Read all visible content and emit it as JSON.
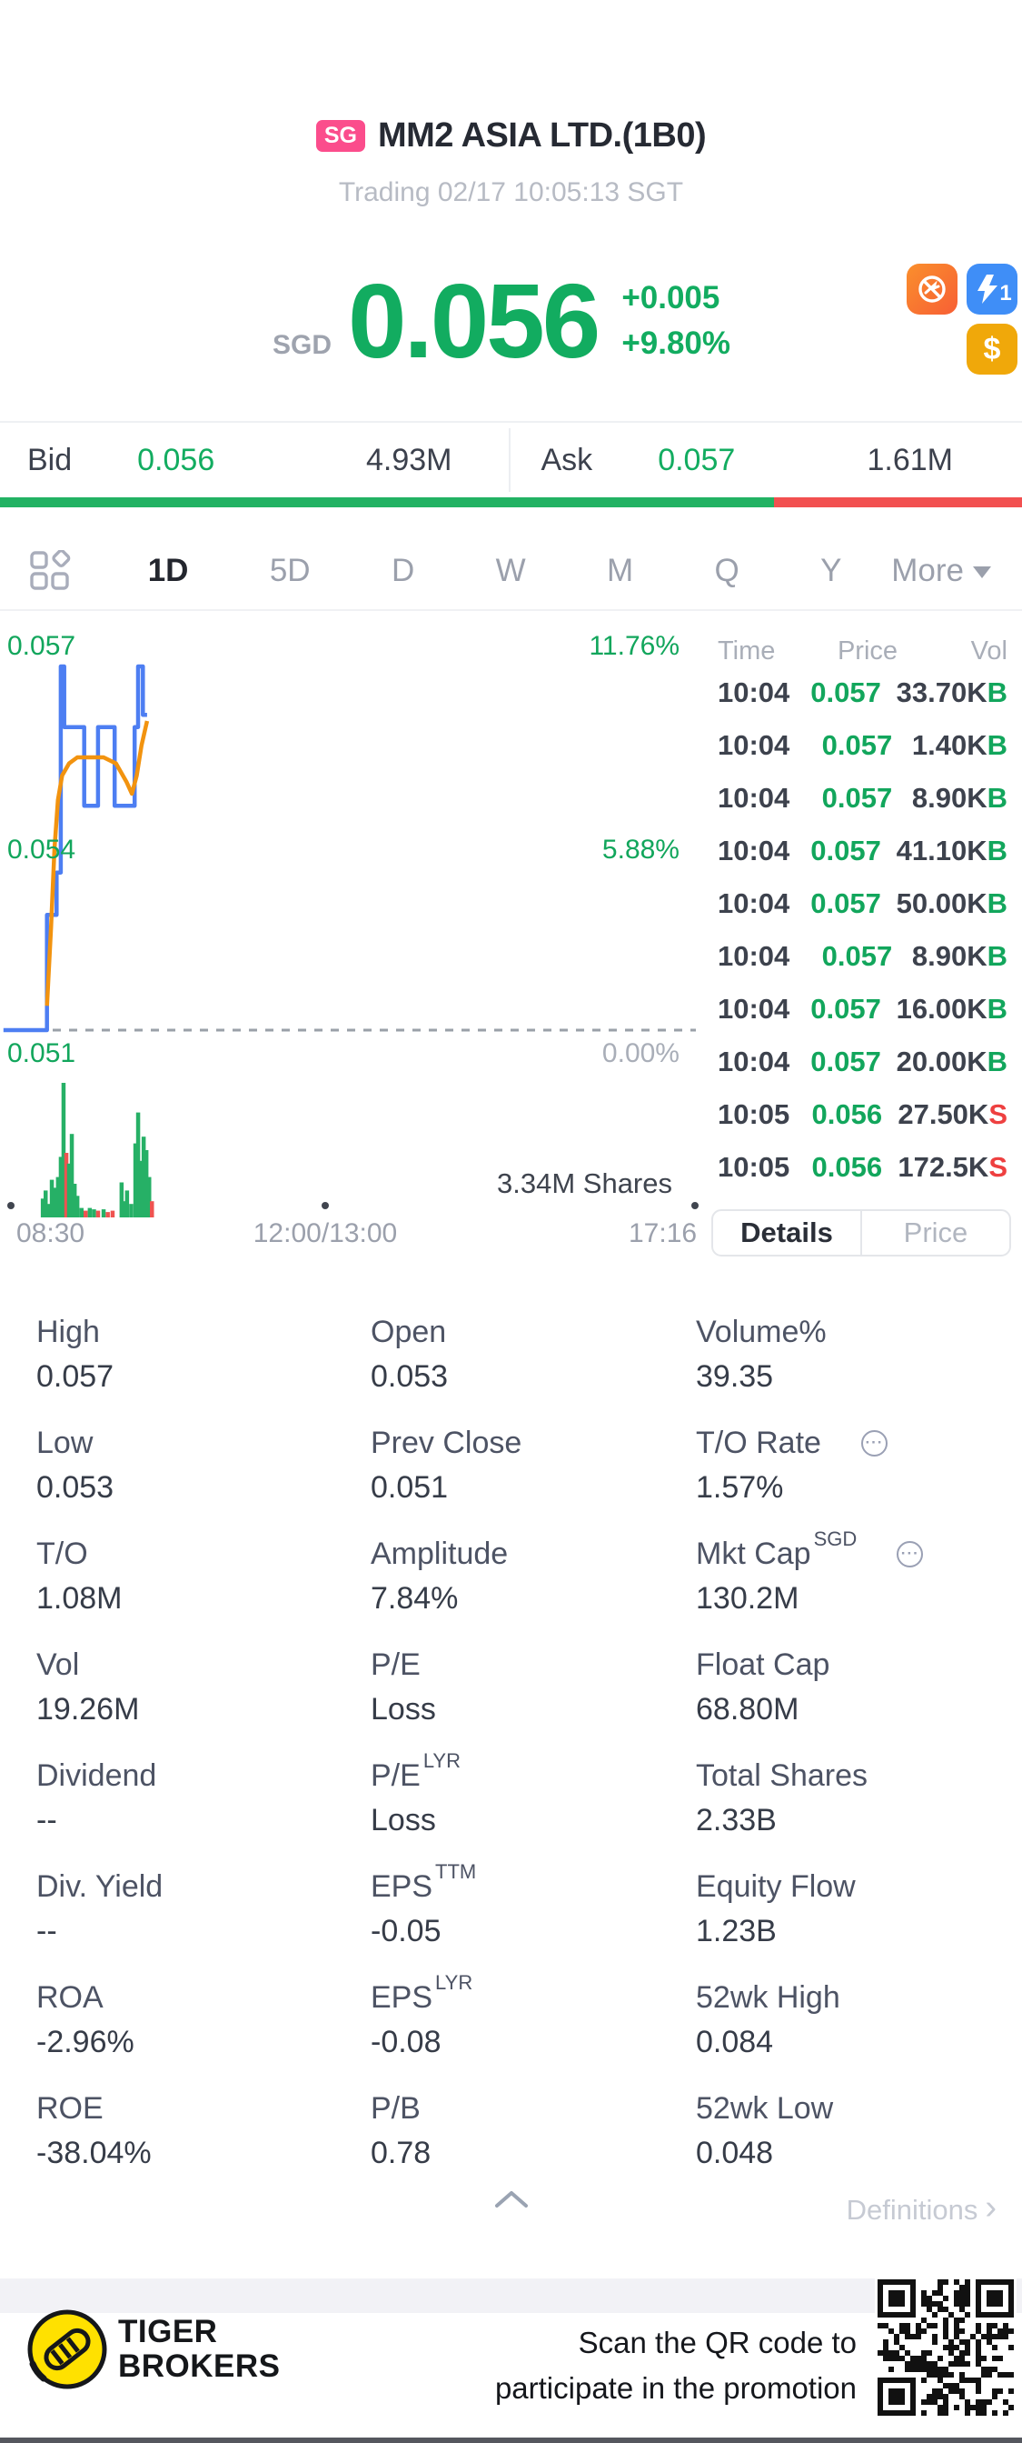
{
  "header": {
    "exchange_badge": "SG",
    "title": "MM2 ASIA LTD.(1B0)",
    "status": "Trading 02/17 10:05:13 SGT"
  },
  "quote": {
    "currency": "SGD",
    "price": "0.056",
    "change": "+0.005",
    "change_pct": "+9.80%",
    "icons": [
      {
        "name": "short-sell-restricted-icon",
        "bg": "#fb7a2e",
        "text": ""
      },
      {
        "name": "level1-quote-icon",
        "bg": "#3f8ef7",
        "text": "1"
      },
      {
        "name": "dollar-icon",
        "bg": "#f0a80a",
        "text": "$"
      }
    ]
  },
  "bid_ask": {
    "bid_label": "Bid",
    "bid_price": "0.056",
    "bid_size": "4.93M",
    "ask_label": "Ask",
    "ask_price": "0.057",
    "ask_size": "1.61M",
    "buy_ratio": 0.757
  },
  "period_tabs": {
    "items": [
      {
        "label": "1D",
        "active": true
      },
      {
        "label": "5D",
        "active": false
      },
      {
        "label": "D",
        "active": false
      },
      {
        "label": "W",
        "active": false
      },
      {
        "label": "M",
        "active": false
      },
      {
        "label": "Q",
        "active": false
      },
      {
        "label": "Y",
        "active": false
      }
    ],
    "more_label": "More"
  },
  "chart_data": {
    "type": "line",
    "title": "MM2 ASIA LTD.(1B0) 1D intraday",
    "currency": "SGD",
    "prev_close": 0.051,
    "y_labels": [
      "0.057",
      "0.054",
      "0.051"
    ],
    "pct_labels": [
      "11.76%",
      "5.88%",
      "0.00%"
    ],
    "x_labels": [
      "08:30",
      "12:00/13:00",
      "17:16"
    ],
    "shares_label": "3.34M Shares",
    "y_min": 0.051,
    "y_max": 0.057,
    "line_color": "#4d7ef2",
    "avg_color": "#f2930f",
    "price_line": [
      [
        0.005,
        0.051
      ],
      [
        0.068,
        0.051
      ],
      [
        0.068,
        0.0529
      ],
      [
        0.082,
        0.0529
      ],
      [
        0.082,
        0.0536
      ],
      [
        0.088,
        0.0536
      ],
      [
        0.088,
        0.057
      ],
      [
        0.093,
        0.057
      ],
      [
        0.093,
        0.056
      ],
      [
        0.122,
        0.056
      ],
      [
        0.122,
        0.0547
      ],
      [
        0.142,
        0.0547
      ],
      [
        0.142,
        0.056
      ],
      [
        0.166,
        0.056
      ],
      [
        0.166,
        0.0547
      ],
      [
        0.195,
        0.0547
      ],
      [
        0.195,
        0.056
      ],
      [
        0.2,
        0.056
      ],
      [
        0.2,
        0.057
      ],
      [
        0.207,
        0.057
      ],
      [
        0.207,
        0.0562
      ],
      [
        0.213,
        0.0562
      ]
    ],
    "avg_line": [
      [
        0.068,
        0.0514
      ],
      [
        0.074,
        0.0527
      ],
      [
        0.079,
        0.054
      ],
      [
        0.084,
        0.0548
      ],
      [
        0.09,
        0.0552
      ],
      [
        0.1,
        0.0554
      ],
      [
        0.112,
        0.0555
      ],
      [
        0.13,
        0.0555
      ],
      [
        0.15,
        0.0555
      ],
      [
        0.168,
        0.0554
      ],
      [
        0.183,
        0.0551
      ],
      [
        0.191,
        0.0549
      ],
      [
        0.198,
        0.0552
      ],
      [
        0.205,
        0.0557
      ],
      [
        0.213,
        0.0561
      ]
    ],
    "volume_bars": [
      [
        0.062,
        0.14,
        "g"
      ],
      [
        0.066,
        0.2,
        "g"
      ],
      [
        0.07,
        0.1,
        "g"
      ],
      [
        0.075,
        0.28,
        "g"
      ],
      [
        0.079,
        0.22,
        "g"
      ],
      [
        0.084,
        0.3,
        "g"
      ],
      [
        0.088,
        0.45,
        "g"
      ],
      [
        0.092,
        1.0,
        "g"
      ],
      [
        0.096,
        0.48,
        "r"
      ],
      [
        0.1,
        0.4,
        "g"
      ],
      [
        0.104,
        0.62,
        "g"
      ],
      [
        0.108,
        0.25,
        "g"
      ],
      [
        0.112,
        0.16,
        "g"
      ],
      [
        0.118,
        0.07,
        "g"
      ],
      [
        0.124,
        0.05,
        "r"
      ],
      [
        0.13,
        0.07,
        "g"
      ],
      [
        0.136,
        0.06,
        "g"
      ],
      [
        0.142,
        0.05,
        "r"
      ],
      [
        0.15,
        0.06,
        "g"
      ],
      [
        0.156,
        0.04,
        "r"
      ],
      [
        0.163,
        0.05,
        "r"
      ],
      [
        0.176,
        0.26,
        "g"
      ],
      [
        0.18,
        0.12,
        "g"
      ],
      [
        0.184,
        0.2,
        "g"
      ],
      [
        0.19,
        0.1,
        "g"
      ],
      [
        0.196,
        0.55,
        "g"
      ],
      [
        0.2,
        0.78,
        "g"
      ],
      [
        0.204,
        0.42,
        "g"
      ],
      [
        0.208,
        0.6,
        "g"
      ],
      [
        0.212,
        0.5,
        "g"
      ],
      [
        0.216,
        0.3,
        "g"
      ],
      [
        0.22,
        0.12,
        "r"
      ]
    ],
    "vol_green": "#26b066",
    "vol_red": "#ef5350"
  },
  "time_sales": {
    "headers": [
      "Time",
      "Price",
      "Vol"
    ],
    "rows": [
      {
        "time": "10:04",
        "price": "0.057",
        "vol": "33.70K",
        "side": "B"
      },
      {
        "time": "10:04",
        "price": "0.057",
        "vol": "1.40K",
        "side": "B"
      },
      {
        "time": "10:04",
        "price": "0.057",
        "vol": "8.90K",
        "side": "B"
      },
      {
        "time": "10:04",
        "price": "0.057",
        "vol": "41.10K",
        "side": "B"
      },
      {
        "time": "10:04",
        "price": "0.057",
        "vol": "50.00K",
        "side": "B"
      },
      {
        "time": "10:04",
        "price": "0.057",
        "vol": "8.90K",
        "side": "B"
      },
      {
        "time": "10:04",
        "price": "0.057",
        "vol": "16.00K",
        "side": "B"
      },
      {
        "time": "10:04",
        "price": "0.057",
        "vol": "20.00K",
        "side": "B"
      },
      {
        "time": "10:05",
        "price": "0.056",
        "vol": "27.50K",
        "side": "S"
      },
      {
        "time": "10:05",
        "price": "0.056",
        "vol": "172.5K",
        "side": "S"
      }
    ]
  },
  "view_toggle": {
    "options": [
      {
        "label": "Details",
        "active": true
      },
      {
        "label": "Price",
        "active": false
      }
    ]
  },
  "details": {
    "cells": [
      {
        "label": "High",
        "value": "0.057"
      },
      {
        "label": "Open",
        "value": "0.053"
      },
      {
        "label": "Volume%",
        "value": "39.35"
      },
      {
        "label": "Low",
        "value": "0.053"
      },
      {
        "label": "Prev Close",
        "value": "0.051"
      },
      {
        "label": "T/O Rate",
        "value": "1.57%",
        "info": true
      },
      {
        "label": "T/O",
        "value": "1.08M"
      },
      {
        "label": "Amplitude",
        "value": "7.84%"
      },
      {
        "label": "Mkt Cap",
        "sup": "SGD",
        "value": "130.2M",
        "info": true
      },
      {
        "label": "Vol",
        "value": "19.26M"
      },
      {
        "label": "P/E",
        "value": "Loss"
      },
      {
        "label": "Float Cap",
        "value": "68.80M"
      },
      {
        "label": "Dividend",
        "value": "--"
      },
      {
        "label": "P/E",
        "sup": "LYR",
        "value": "Loss"
      },
      {
        "label": "Total Shares",
        "value": "2.33B"
      },
      {
        "label": "Div. Yield",
        "value": "--"
      },
      {
        "label": "EPS",
        "sup": "TTM",
        "value": "-0.05"
      },
      {
        "label": "Equity Flow",
        "value": "1.23B"
      },
      {
        "label": "ROA",
        "value": "-2.96%"
      },
      {
        "label": "EPS",
        "sup": "LYR",
        "value": "-0.08"
      },
      {
        "label": "52wk High",
        "value": "0.084"
      },
      {
        "label": "ROE",
        "value": "-38.04%"
      },
      {
        "label": "P/B",
        "value": "0.78"
      },
      {
        "label": "52wk Low",
        "value": "0.048"
      }
    ]
  },
  "definitions_label": "Definitions",
  "footer": {
    "brand": [
      "TIGER",
      "BROKERS"
    ],
    "promo": [
      "Scan the QR code to",
      "participate in the promotion"
    ]
  },
  "colors": {
    "green": "#12ac60",
    "red": "#ee4040",
    "badge_pink": "#fb4d8c",
    "line_blue": "#4d7ef2",
    "avg_orange": "#f2930f"
  }
}
